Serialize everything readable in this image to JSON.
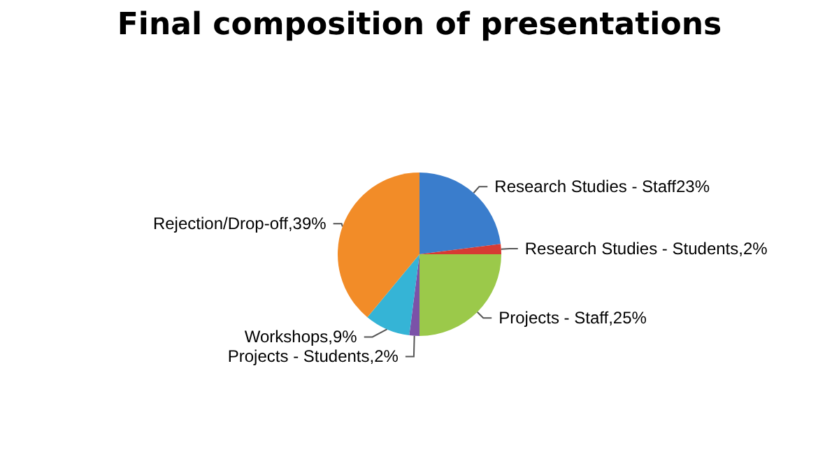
{
  "chart_data": {
    "type": "pie",
    "title": "Final composition of presentations",
    "categories": [
      "Research Studies - Staff",
      "Research Studies - Students",
      "Projects - Staff",
      "Projects - Students",
      "Workshops",
      "Rejection/Drop-off"
    ],
    "values": [
      23,
      2,
      25,
      2,
      9,
      39
    ],
    "colors": [
      "#3a7dcc",
      "#d63b33",
      "#9bc94a",
      "#7b52a8",
      "#35b4d6",
      "#f28c28"
    ],
    "value_labels": [
      "23%",
      ",2%",
      ",25%",
      ",2%",
      ",9%",
      ",39%"
    ],
    "legend": false
  }
}
